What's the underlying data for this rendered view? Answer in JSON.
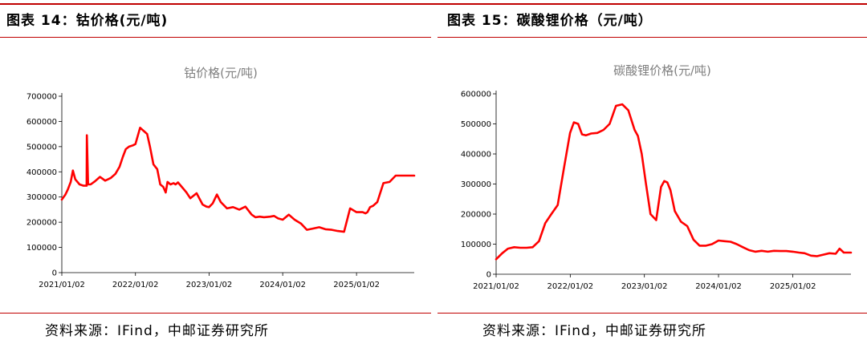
{
  "colors": {
    "accent": "#c00000",
    "series": "#ff0000",
    "chart_title": "#7f7f7f"
  },
  "left": {
    "header": "图表 14：钴价格(元/吨)",
    "source": "资料来源：IFind，中邮证券研究所"
  },
  "right": {
    "header": "图表 15：碳酸锂价格（元/吨）",
    "source": "资料来源：IFind，中邮证券研究所"
  },
  "chart_data": [
    {
      "type": "line",
      "title": "钴价格(元/吨)",
      "xlabel": "",
      "ylabel": "",
      "ylim": [
        0,
        700000
      ],
      "yticks": [
        "0",
        "100000",
        "200000",
        "300000",
        "400000",
        "500000",
        "600000",
        "700000"
      ],
      "xlim": [
        "2021-01-02",
        "2025-10-15"
      ],
      "xticks": [
        "2021/01/02",
        "2022/01/02",
        "2023/01/02",
        "2024/01/02",
        "2025/01/02"
      ],
      "grid": false,
      "legend": "none",
      "series": [
        {
          "x": [
            "2021-01-02",
            "2021-01-20",
            "2021-02-01",
            "2021-02-15",
            "2021-02-26",
            "2021-03-10",
            "2021-03-31",
            "2021-04-20",
            "2021-05-05",
            "2021-05-06",
            "2021-05-12",
            "2021-05-25",
            "2021-06-15",
            "2021-07-10",
            "2021-08-05",
            "2021-09-01",
            "2021-09-25",
            "2021-10-15",
            "2021-11-01",
            "2021-11-15",
            "2021-12-01",
            "2021-12-20",
            "2022-01-02",
            "2022-01-25",
            "2022-02-15",
            "2022-03-01",
            "2022-03-15",
            "2022-04-01",
            "2022-04-20",
            "2022-05-05",
            "2022-05-20",
            "2022-06-01",
            "2022-06-10",
            "2022-06-25",
            "2022-07-10",
            "2022-07-20",
            "2022-08-01",
            "2022-08-20",
            "2022-09-10",
            "2022-10-01",
            "2022-11-01",
            "2022-12-01",
            "2022-12-20",
            "2023-01-02",
            "2023-01-20",
            "2023-02-10",
            "2023-03-01",
            "2023-04-01",
            "2023-05-01",
            "2023-06-01",
            "2023-07-01",
            "2023-08-01",
            "2023-08-20",
            "2023-09-10",
            "2023-10-01",
            "2023-11-01",
            "2023-11-20",
            "2023-12-10",
            "2024-01-02",
            "2024-02-01",
            "2024-03-01",
            "2024-04-01",
            "2024-05-01",
            "2024-06-01",
            "2024-07-01",
            "2024-08-01",
            "2024-09-01",
            "2024-10-01",
            "2024-11-01",
            "2024-12-01",
            "2025-01-02",
            "2025-02-01",
            "2025-02-15",
            "2025-02-25",
            "2025-03-10",
            "2025-03-25",
            "2025-04-15",
            "2025-05-15",
            "2025-06-15",
            "2025-07-15",
            "2025-08-15",
            "2025-09-10",
            "2025-09-25",
            "2025-10-05",
            "2025-10-15"
          ],
          "values": [
            290000,
            310000,
            330000,
            360000,
            405000,
            370000,
            350000,
            345000,
            345000,
            545000,
            350000,
            350000,
            362000,
            380000,
            365000,
            375000,
            392000,
            420000,
            460000,
            490000,
            500000,
            505000,
            510000,
            575000,
            560000,
            550000,
            500000,
            430000,
            410000,
            350000,
            340000,
            318000,
            360000,
            350000,
            355000,
            350000,
            358000,
            340000,
            320000,
            295000,
            315000,
            270000,
            262000,
            260000,
            275000,
            310000,
            280000,
            255000,
            260000,
            250000,
            262000,
            230000,
            220000,
            222000,
            220000,
            222000,
            225000,
            215000,
            210000,
            230000,
            210000,
            195000,
            170000,
            175000,
            180000,
            172000,
            170000,
            165000,
            162000,
            255000,
            240000,
            240000,
            235000,
            240000,
            260000,
            265000,
            280000,
            355000,
            360000,
            385000,
            385000,
            385000,
            385000,
            385000,
            385000
          ]
        }
      ]
    },
    {
      "type": "line",
      "title": "碳酸锂价格(元/吨)",
      "xlabel": "",
      "ylabel": "",
      "ylim": [
        0,
        600000
      ],
      "yticks": [
        "0",
        "100000",
        "200000",
        "300000",
        "400000",
        "500000",
        "600000"
      ],
      "xlim": [
        "2021-01-02",
        "2025-10-15"
      ],
      "xticks": [
        "2021/01/02",
        "2022/01/02",
        "2023/01/02",
        "2024/01/02",
        "2025/01/02"
      ],
      "grid": false,
      "legend": "none",
      "series": [
        {
          "x": [
            "2021-01-02",
            "2021-02-01",
            "2021-03-01",
            "2021-04-01",
            "2021-05-01",
            "2021-06-01",
            "2021-07-01",
            "2021-08-01",
            "2021-09-01",
            "2021-10-01",
            "2021-11-01",
            "2021-12-01",
            "2022-01-01",
            "2022-01-20",
            "2022-02-10",
            "2022-03-01",
            "2022-03-20",
            "2022-04-15",
            "2022-05-15",
            "2022-06-15",
            "2022-07-15",
            "2022-08-15",
            "2022-09-15",
            "2022-10-15",
            "2022-11-15",
            "2022-12-01",
            "2022-12-20",
            "2023-01-10",
            "2023-02-01",
            "2023-03-01",
            "2023-03-25",
            "2023-04-10",
            "2023-04-25",
            "2023-05-10",
            "2023-06-01",
            "2023-07-01",
            "2023-08-01",
            "2023-09-01",
            "2023-10-01",
            "2023-11-01",
            "2023-12-01",
            "2024-01-02",
            "2024-02-01",
            "2024-03-01",
            "2024-04-01",
            "2024-05-01",
            "2024-06-01",
            "2024-07-01",
            "2024-08-01",
            "2024-09-01",
            "2024-10-01",
            "2024-11-01",
            "2024-12-01",
            "2025-01-02",
            "2025-02-01",
            "2025-03-01",
            "2025-04-01",
            "2025-05-01",
            "2025-06-01",
            "2025-07-01",
            "2025-08-01",
            "2025-08-20",
            "2025-09-10",
            "2025-10-01",
            "2025-10-15"
          ],
          "values": [
            50000,
            70000,
            85000,
            90000,
            88000,
            88000,
            90000,
            110000,
            170000,
            200000,
            230000,
            350000,
            470000,
            505000,
            500000,
            465000,
            462000,
            468000,
            470000,
            480000,
            500000,
            560000,
            565000,
            545000,
            480000,
            460000,
            400000,
            300000,
            200000,
            180000,
            290000,
            310000,
            305000,
            280000,
            210000,
            175000,
            160000,
            115000,
            95000,
            95000,
            100000,
            112000,
            110000,
            108000,
            100000,
            90000,
            80000,
            75000,
            78000,
            75000,
            78000,
            77000,
            77000,
            75000,
            72000,
            70000,
            62000,
            60000,
            65000,
            70000,
            68000,
            85000,
            72000,
            72000,
            72000
          ]
        }
      ]
    }
  ]
}
